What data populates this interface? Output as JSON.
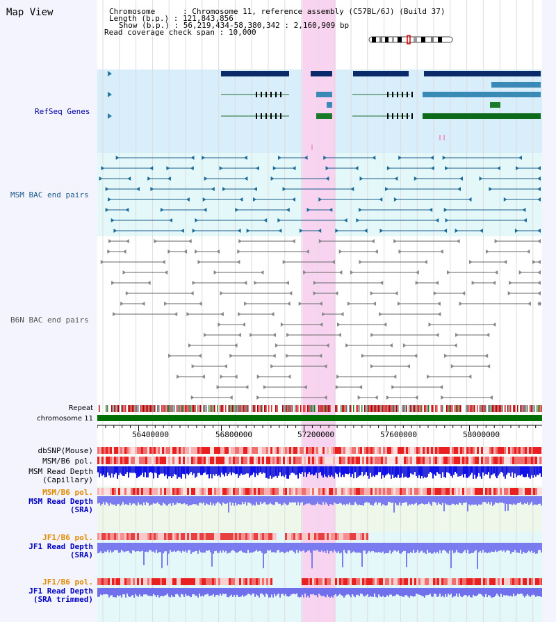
{
  "view_title": "Map View",
  "info": {
    "chromosome_label": "Chromosome",
    "chromosome_value": "Chromosome 11, reference assembly (C57BL/6J) (Build 37)",
    "length_label": "Length (b.p.)",
    "length_value": "121,843,856",
    "show_label": "Show (b.p.)",
    "show_value": "56,219,434-58,380,342 : 2,160,909 bp",
    "coverage_label": "Read coverage check span",
    "coverage_value": "10,000"
  },
  "tracks": {
    "refseq": {
      "label": "RefSeq Genes",
      "color": "#0000a0"
    },
    "msm_bac": {
      "label": "MSM BAC end pairs",
      "color": "#1a5a8a"
    },
    "b6n_bac": {
      "label": "B6N BAC end pairs",
      "color": "#555555"
    },
    "repeat": {
      "label": "Repeat"
    },
    "chromosome": {
      "label": "chromosome 11"
    },
    "dbsnp": {
      "label": "dbSNP(Mouse)"
    },
    "msm_b6_pol": {
      "label": "MSM/B6 pol."
    },
    "msm_depth_cap": {
      "label": "MSM Read Depth\n(Capillary)"
    },
    "msm_b6_pol2": {
      "label": "MSM/B6 pol.",
      "color": "#e08a00"
    },
    "msm_depth_sra": {
      "label": "MSM Read Depth\n(SRA)",
      "color": "#0000c0"
    },
    "jf1_b6_pol": {
      "label": "JF1/B6 pol.",
      "color": "#e08a00"
    },
    "jf1_depth_sra": {
      "label": "JF1 Read Depth\n(SRA)",
      "color": "#0000c0"
    },
    "jf1_b6_pol2": {
      "label": "JF1/B6 pol.",
      "color": "#e08a00"
    },
    "jf1_depth_trim": {
      "label": "JF1 Read Depth\n(SRA trimmed)",
      "color": "#0000c0"
    }
  },
  "axis": {
    "ticks": [
      "56400000",
      "56800000",
      "57200000",
      "57600000",
      "58000000"
    ]
  },
  "colors": {
    "highlight": "#f9d4f0",
    "refseq_bg": "#d8eefa",
    "msm_bg": "#e4f8fa",
    "chrom_bar": "#007000",
    "pol_red": "#e62020",
    "depth_blue": "#1010e0",
    "depth_light": "#7b7bf0"
  }
}
